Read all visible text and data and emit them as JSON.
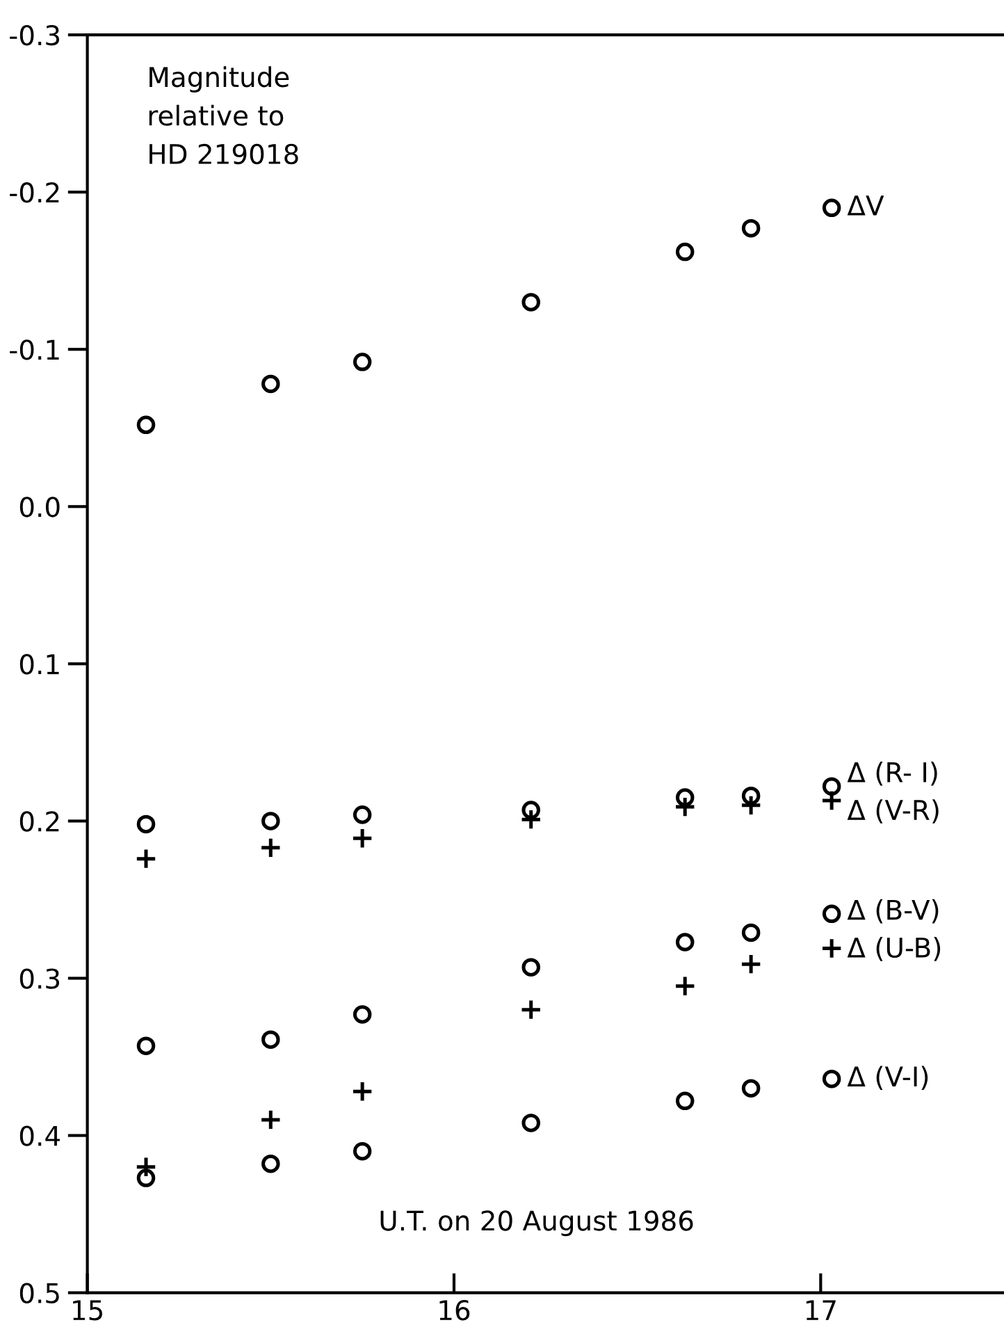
{
  "chart_data": {
    "type": "scatter",
    "xlim": [
      15,
      17.5
    ],
    "xticks": [
      15,
      16,
      17
    ],
    "ylim": [
      0.5,
      -0.3
    ],
    "yticks": [
      -0.3,
      -0.2,
      -0.1,
      {
        "value": 0,
        "label": "0.0"
      },
      0.1,
      0.2,
      0.3,
      0.4,
      0.5
    ],
    "grid": false,
    "legend": false,
    "x": [
      15.16,
      15.5,
      15.75,
      16.21,
      16.63,
      16.81,
      17.03
    ],
    "series": [
      {
        "name": "ΔV",
        "color": "#000000",
        "marker": "circle",
        "values": [
          -0.052,
          -0.078,
          -0.092,
          -0.13,
          -0.162,
          -0.177,
          -0.19
        ]
      },
      {
        "name": "Δ (R- I)",
        "color": "#000000",
        "marker": "circle",
        "values": [
          0.202,
          0.2,
          0.196,
          0.193,
          0.185,
          0.184,
          0.178
        ]
      },
      {
        "name": "Δ (V-R)",
        "color": "#000000",
        "marker": "cross",
        "values": [
          0.224,
          0.217,
          0.211,
          0.199,
          0.191,
          0.19,
          0.187
        ]
      },
      {
        "name": "Δ (B-V)",
        "color": "#000000",
        "marker": "circle",
        "values": [
          0.343,
          0.339,
          0.323,
          0.293,
          0.277,
          0.271,
          0.259
        ]
      },
      {
        "name": "Δ (U-B)",
        "color": "#000000",
        "marker": "cross",
        "values": [
          0.42,
          0.39,
          0.372,
          0.32,
          0.305,
          0.291,
          0.281
        ]
      },
      {
        "name": "Δ (V-I)",
        "color": "#000000",
        "marker": "circle",
        "values": [
          0.427,
          0.418,
          0.41,
          0.392,
          0.378,
          0.37,
          0.364
        ]
      }
    ],
    "annotations": [
      "Magnitude\nrelative to\nHD 219018",
      "U.T. on 20 August 1986"
    ]
  }
}
